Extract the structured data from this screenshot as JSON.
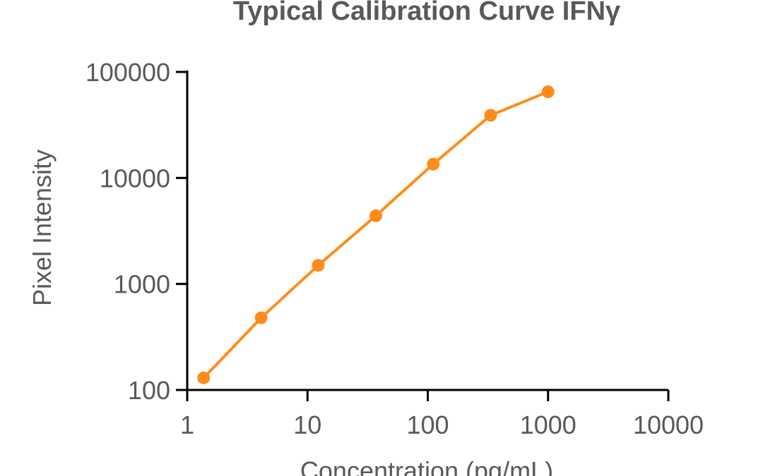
{
  "chart_data": {
    "type": "line",
    "title": "Typical Calibration Curve IFNγ",
    "xlabel": "Concentration (pg/mL)",
    "ylabel": "Pixel Intensity",
    "x_scale": "log",
    "y_scale": "log",
    "xlim": [
      1,
      10000
    ],
    "ylim": [
      100,
      100000
    ],
    "x_ticks": [
      1,
      10,
      100,
      1000,
      10000
    ],
    "x_tick_labels": [
      "1",
      "10",
      "100",
      "1000",
      "10000"
    ],
    "y_ticks": [
      100,
      1000,
      10000,
      100000
    ],
    "y_tick_labels": [
      "100",
      "1000",
      "10000",
      "100000"
    ],
    "grid": false,
    "series": [
      {
        "color": "#ff8c1a",
        "x": [
          1.37,
          4.12,
          12.3,
          37.0,
          111,
          333,
          1000
        ],
        "y": [
          130,
          480,
          1500,
          4400,
          13500,
          39000,
          65000
        ]
      }
    ]
  }
}
